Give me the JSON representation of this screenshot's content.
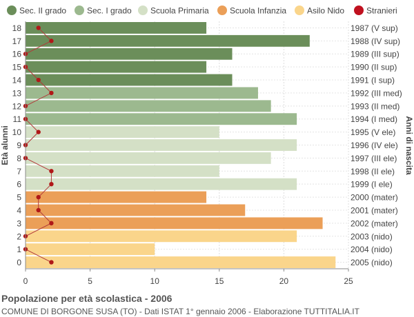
{
  "chart_data": {
    "type": "bar",
    "orientation": "horizontal",
    "title": "Popolazione per età scolastica - 2006",
    "subtitle": "COMUNE DI BORGONE SUSA (TO) - Dati ISTAT 1° gennaio 2006 - Elaborazione TUTTITALIA.IT",
    "ylabel": "Età alunni",
    "ylabel_right": "Anni di nascita",
    "xlim": [
      0,
      25
    ],
    "xticks": [
      0,
      5,
      10,
      15,
      20,
      25
    ],
    "grid": true,
    "legend_position": "top",
    "legend": [
      {
        "label": "Sec. II grado",
        "color": "#6b8e5a"
      },
      {
        "label": "Sec. I grado",
        "color": "#9cb98f"
      },
      {
        "label": "Scuola Primaria",
        "color": "#d4e0c6"
      },
      {
        "label": "Scuola Infanzia",
        "color": "#eb9f58"
      },
      {
        "label": "Asilo Nido",
        "color": "#fad58b"
      },
      {
        "label": "Stranieri",
        "color": "#c0111f"
      }
    ],
    "rows": [
      {
        "age": "18",
        "year": "1987 (V sup)",
        "value": 14,
        "stranieri": 1,
        "group": 0
      },
      {
        "age": "17",
        "year": "1988 (IV sup)",
        "value": 22,
        "stranieri": 2,
        "group": 0
      },
      {
        "age": "16",
        "year": "1989 (III sup)",
        "value": 16,
        "stranieri": 0,
        "group": 0
      },
      {
        "age": "15",
        "year": "1990 (II sup)",
        "value": 14,
        "stranieri": 0,
        "group": 0
      },
      {
        "age": "14",
        "year": "1991 (I sup)",
        "value": 16,
        "stranieri": 1,
        "group": 0
      },
      {
        "age": "13",
        "year": "1992 (III med)",
        "value": 18,
        "stranieri": 2,
        "group": 1
      },
      {
        "age": "12",
        "year": "1993 (II med)",
        "value": 19,
        "stranieri": 0,
        "group": 1
      },
      {
        "age": "11",
        "year": "1994 (I med)",
        "value": 21,
        "stranieri": 0,
        "group": 1
      },
      {
        "age": "10",
        "year": "1995 (V ele)",
        "value": 15,
        "stranieri": 1,
        "group": 2
      },
      {
        "age": "9",
        "year": "1996 (IV ele)",
        "value": 21,
        "stranieri": 0,
        "group": 2
      },
      {
        "age": "8",
        "year": "1997 (III ele)",
        "value": 19,
        "stranieri": 0,
        "group": 2
      },
      {
        "age": "7",
        "year": "1998 (II ele)",
        "value": 15,
        "stranieri": 2,
        "group": 2
      },
      {
        "age": "6",
        "year": "1999 (I ele)",
        "value": 21,
        "stranieri": 2,
        "group": 2
      },
      {
        "age": "5",
        "year": "2000 (mater)",
        "value": 14,
        "stranieri": 1,
        "group": 3
      },
      {
        "age": "4",
        "year": "2001 (mater)",
        "value": 17,
        "stranieri": 1,
        "group": 3
      },
      {
        "age": "3",
        "year": "2002 (mater)",
        "value": 23,
        "stranieri": 2,
        "group": 3
      },
      {
        "age": "2",
        "year": "2003 (nido)",
        "value": 21,
        "stranieri": 0,
        "group": 4
      },
      {
        "age": "1",
        "year": "2004 (nido)",
        "value": 10,
        "stranieri": 0,
        "group": 4
      },
      {
        "age": "0",
        "year": "2005 (nido)",
        "value": 24,
        "stranieri": 2,
        "group": 4
      }
    ]
  }
}
